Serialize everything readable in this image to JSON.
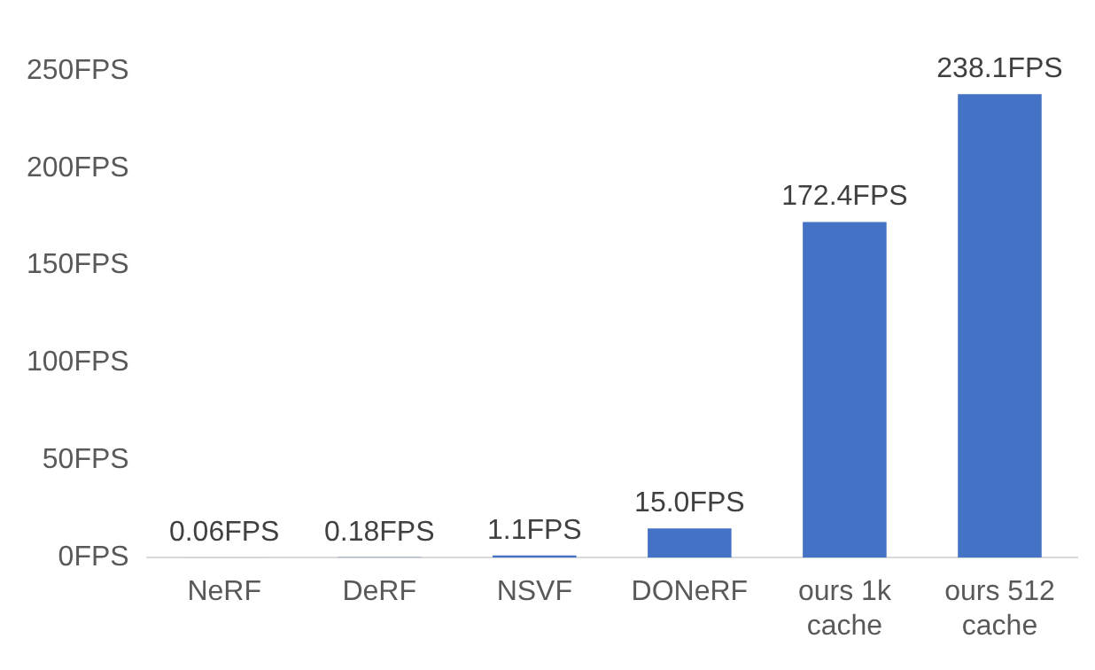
{
  "chart_data": {
    "type": "bar",
    "categories": [
      "NeRF",
      "DeRF",
      "NSVF",
      "DONeRF",
      "ours 1k cache",
      "ours 512 cache"
    ],
    "values": [
      0.06,
      0.18,
      1.1,
      15.0,
      172.4,
      238.1
    ],
    "value_labels": [
      "0.06FPS",
      "0.18FPS",
      "1.1FPS",
      "15.0FPS",
      "172.4FPS",
      "238.1FPS"
    ],
    "color": "#4472c4",
    "ylim": [
      0,
      250
    ],
    "yticks": [
      {
        "value": 0,
        "label": "0FPS"
      },
      {
        "value": 50,
        "label": "50FPS"
      },
      {
        "value": 100,
        "label": "100FPS"
      },
      {
        "value": 150,
        "label": "150FPS"
      },
      {
        "value": 200,
        "label": "200FPS"
      },
      {
        "value": 250,
        "label": "250FPS"
      }
    ],
    "grid": false,
    "legend": false
  }
}
